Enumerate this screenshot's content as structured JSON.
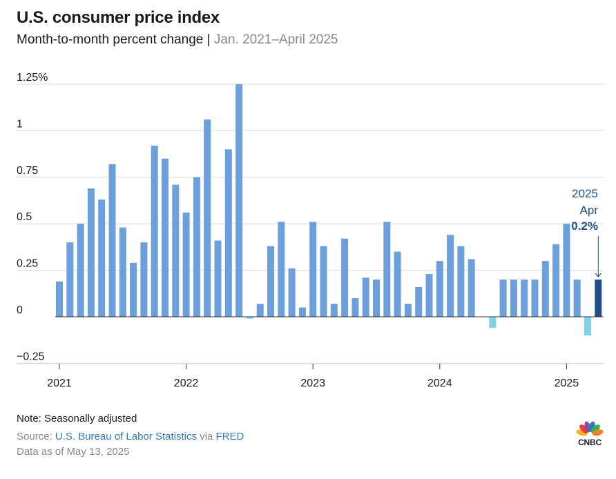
{
  "header": {
    "title": "U.S. consumer price index",
    "subtitle_main": "Month-to-month percent change | ",
    "subtitle_range": "Jan. 2021–April 2025"
  },
  "chart_data": {
    "type": "bar",
    "title": "U.S. consumer price index",
    "subtitle": "Month-to-month percent change | Jan. 2021–April 2025",
    "xlabel": "",
    "ylabel": "",
    "ylim": [
      -0.3,
      1.25
    ],
    "y_ticks": [
      1.25,
      1,
      0.75,
      0.5,
      0.25,
      0,
      -0.25
    ],
    "y_tick_labels": [
      "1.25%",
      "1",
      "0.75",
      "0.5",
      "0.25",
      "0",
      "−0.25"
    ],
    "x_tick_labels": [
      "2021",
      "2022",
      "2023",
      "2024",
      "2025"
    ],
    "grid": true,
    "colors": {
      "positive": "#6b9fdd",
      "negative": "#7bd3e8",
      "highlight": "#1f4e8a",
      "grid": "#d9d9d9",
      "zero_line": "#333333"
    },
    "categories": [
      "2021-01",
      "2021-02",
      "2021-03",
      "2021-04",
      "2021-05",
      "2021-06",
      "2021-07",
      "2021-08",
      "2021-09",
      "2021-10",
      "2021-11",
      "2021-12",
      "2022-01",
      "2022-02",
      "2022-03",
      "2022-04",
      "2022-05",
      "2022-06",
      "2022-07",
      "2022-08",
      "2022-09",
      "2022-10",
      "2022-11",
      "2022-12",
      "2023-01",
      "2023-02",
      "2023-03",
      "2023-04",
      "2023-05",
      "2023-06",
      "2023-07",
      "2023-08",
      "2023-09",
      "2023-10",
      "2023-11",
      "2023-12",
      "2024-01",
      "2024-02",
      "2024-03",
      "2024-04",
      "2024-05",
      "2024-06",
      "2024-07",
      "2024-08",
      "2024-09",
      "2024-10",
      "2024-11",
      "2024-12",
      "2025-01",
      "2025-02",
      "2025-03",
      "2025-04"
    ],
    "values": [
      0.19,
      0.4,
      0.5,
      0.69,
      0.63,
      0.82,
      0.48,
      0.29,
      0.4,
      0.92,
      0.85,
      0.71,
      0.56,
      0.75,
      1.06,
      0.41,
      0.9,
      1.25,
      -0.01,
      0.07,
      0.38,
      0.51,
      0.26,
      0.05,
      0.51,
      0.38,
      0.07,
      0.42,
      0.1,
      0.21,
      0.2,
      0.51,
      0.35,
      0.07,
      0.16,
      0.23,
      0.3,
      0.44,
      0.38,
      0.31,
      0.0,
      -0.06,
      0.2,
      0.2,
      0.2,
      0.2,
      0.3,
      0.39,
      0.5,
      0.2,
      -0.1,
      0.2
    ],
    "annotation": {
      "year": "2025",
      "month": "Apr",
      "value": "0.2%"
    }
  },
  "footer": {
    "note": "Note: Seasonally adjusted",
    "source_prefix": "Source: ",
    "source_name": "U.S. Bureau of Labor Statistics",
    "source_via": " via ",
    "source_link": "FRED",
    "as_of": "Data as of May 13, 2025"
  },
  "logo": {
    "text": "CNBC",
    "icon": "nbc-peacock-icon",
    "colors": [
      "#f7b31b",
      "#ef3b3b",
      "#8b4ea3",
      "#2b7dc1",
      "#3bb14a",
      "#f58220"
    ]
  }
}
